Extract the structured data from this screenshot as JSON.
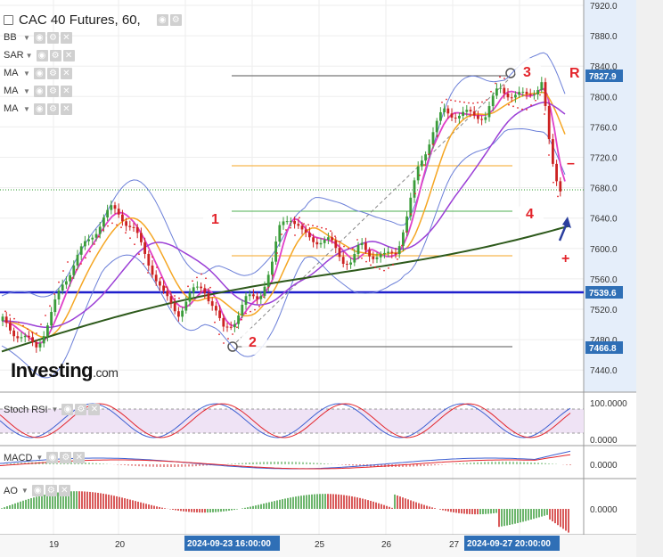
{
  "title": "CAC 40 Futures, 60,",
  "indicators": [
    {
      "name": "BB"
    },
    {
      "name": "SAR"
    },
    {
      "name": "MA"
    },
    {
      "name": "MA"
    },
    {
      "name": "MA"
    }
  ],
  "price_axis": {
    "ticks": [
      "7920.0",
      "7880.0",
      "7840.0",
      "7800.0",
      "7760.0",
      "7720.0",
      "7680.0",
      "7640.0",
      "7600.0",
      "7560.0",
      "7520.0",
      "7480.0",
      "7440.0"
    ],
    "tags": [
      {
        "label": "7827.9",
        "color": "#2f6fb6"
      },
      {
        "label": "7539.6",
        "color": "#2f6fb6"
      },
      {
        "label": "7466.8",
        "color": "#2f6fb6"
      }
    ]
  },
  "subpanels": {
    "stoch_rsi": {
      "label": "Stoch RSI",
      "ticks": [
        "100.0000",
        "0.0000"
      ]
    },
    "macd": {
      "label": "MACD",
      "ticks": [
        "0.0000"
      ]
    },
    "ao": {
      "label": "AO",
      "ticks": [
        "0.0000"
      ]
    }
  },
  "time_axis": {
    "labels": [
      "19",
      "20",
      "25",
      "26",
      "27"
    ],
    "highlighted": [
      "2024-09-23 16:00:00",
      "2024-09-27 20:00:00"
    ]
  },
  "annotations": {
    "waves": [
      "1",
      "2",
      "3",
      "4"
    ],
    "r_label": "R",
    "minus_label": "–",
    "plus_label": "+"
  },
  "brand": {
    "name": "Investing",
    "suffix": ".com"
  },
  "colors": {
    "bb": "#6b7fd8",
    "sar": "#e3242b",
    "ma_fast": "#e040c8",
    "ma_mid": "#f5a623",
    "ma_slow": "#9b3fd6",
    "ma_long": "#2e5a1c",
    "support_line": "#1f1fcc",
    "tag_blue": "#2f6fb6",
    "axis_bg": "#cfe0f5",
    "up": "#3a9c3a",
    "down": "#cc2222"
  },
  "chart_data": {
    "type": "line",
    "instrument": "CAC 40 Futures",
    "interval": "60",
    "y_range": [
      7420,
      7930
    ],
    "levels": {
      "resistance": 7827.9,
      "support": 7539.6,
      "low": 7466.8,
      "last": 7680
    }
  }
}
